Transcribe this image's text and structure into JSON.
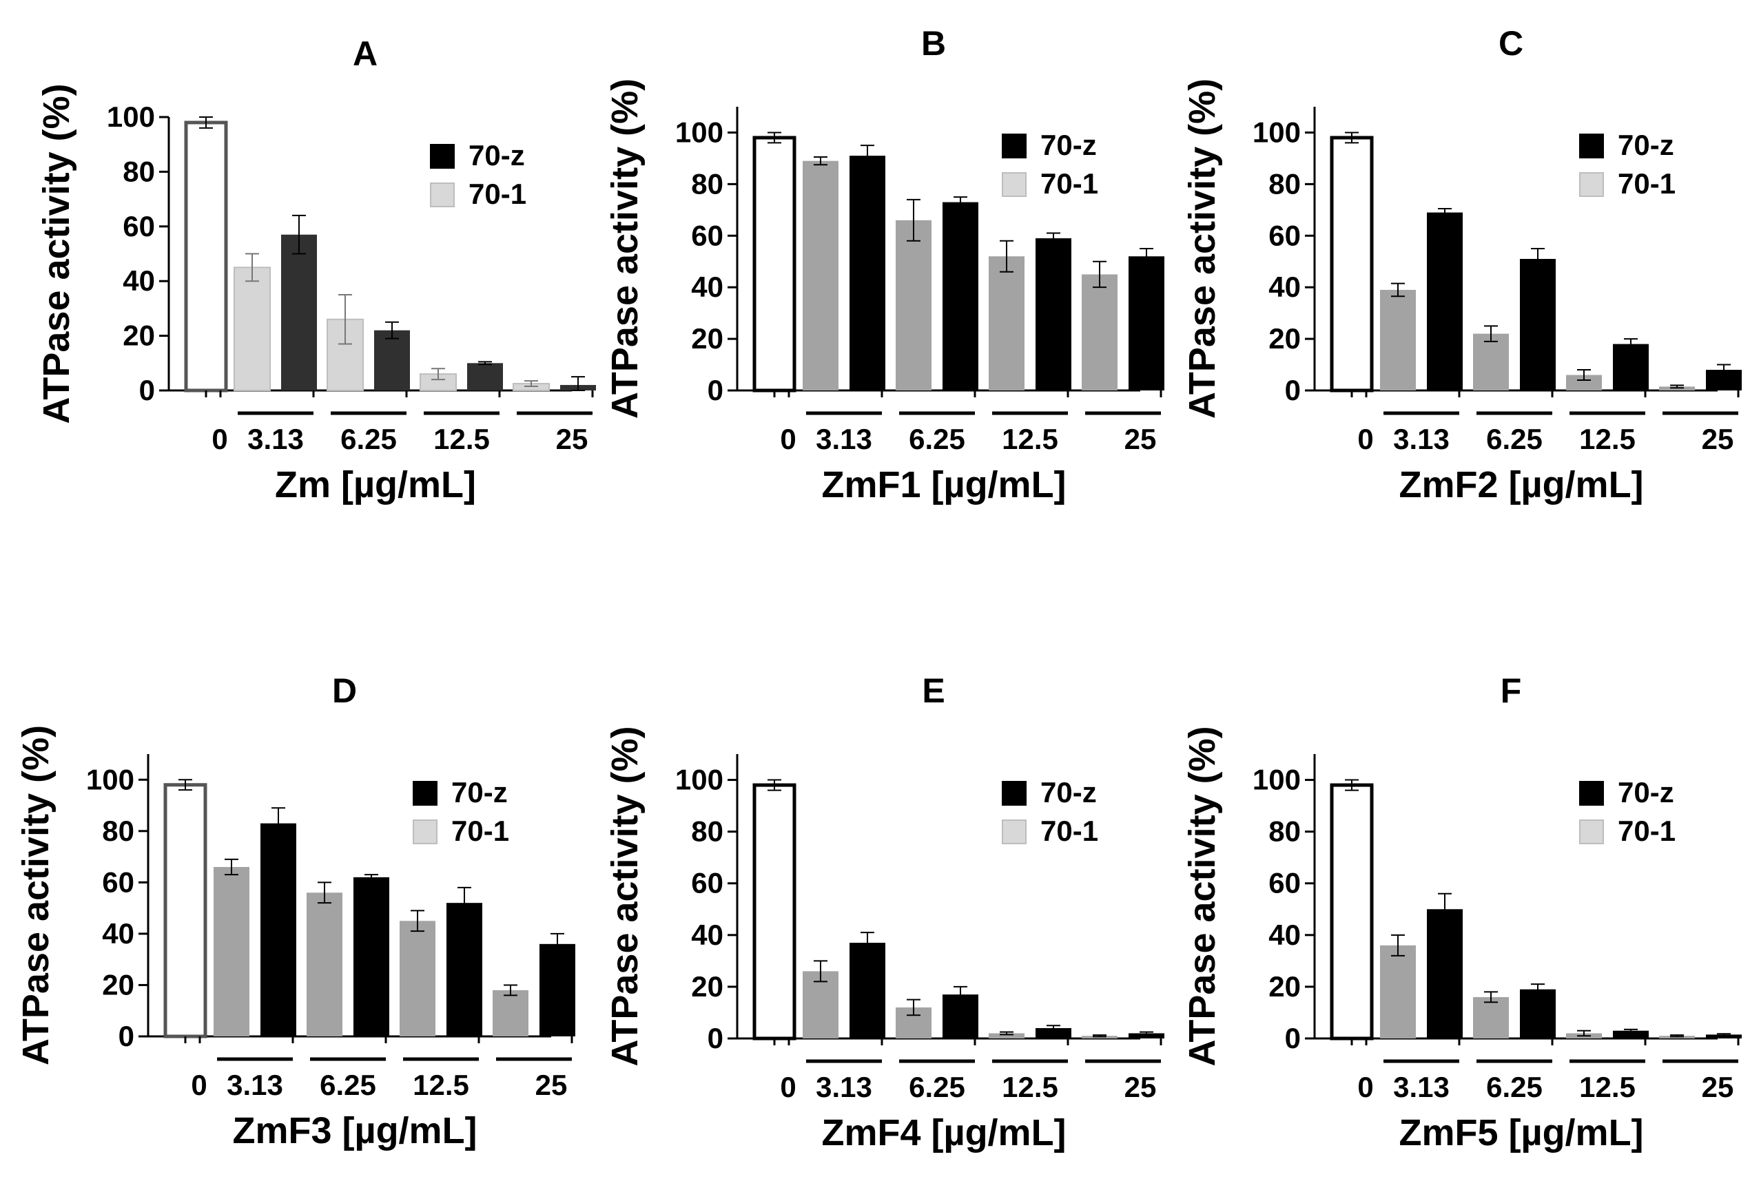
{
  "figure": {
    "type": "grouped bar charts with error bars",
    "rows": 2,
    "cols": 3
  },
  "colors": {
    "control_fill": "#ffffff",
    "control_stroke_dark": "#000000",
    "control_stroke_gray": "#555555",
    "series_70z": "#000000",
    "series_70z_panelA": "#303030",
    "series_701_legend": "#d8d8d8",
    "series_701_bars": "#a3a3a3",
    "series_701_panelA": "#d6d6d6"
  },
  "chart_data": [
    {
      "id": "A",
      "title": "A",
      "type": "bar",
      "xlabel": "Zm [µg/mL]",
      "ylabel": "ATPase activity (%)",
      "ylim": [
        0,
        100
      ],
      "yticks": [
        0,
        20,
        40,
        60,
        80,
        100
      ],
      "legend": [
        "70-z",
        "70-1"
      ],
      "control": {
        "label": "0",
        "value": 98,
        "error": 2
      },
      "groups": [
        "3.13",
        "6.25",
        "12.5",
        "25"
      ],
      "series": [
        {
          "name": "70-1",
          "values": [
            45,
            26,
            6,
            2.5
          ],
          "errors": [
            5,
            9,
            2,
            1
          ]
        },
        {
          "name": "70-z",
          "values": [
            57,
            22,
            10,
            2
          ],
          "errors": [
            7,
            3,
            0.5,
            3
          ]
        }
      ]
    },
    {
      "id": "B",
      "title": "B",
      "type": "bar",
      "xlabel": "ZmF1 [µg/mL]",
      "ylabel": "ATPase activity (%)",
      "ylim": [
        0,
        110
      ],
      "yticks": [
        0,
        20,
        40,
        60,
        80,
        100
      ],
      "legend": [
        "70-z",
        "70-1"
      ],
      "control": {
        "label": "0",
        "value": 98,
        "error": 2
      },
      "groups": [
        "3.13",
        "6.25",
        "12.5",
        "25"
      ],
      "series": [
        {
          "name": "70-1",
          "values": [
            89,
            66,
            52,
            45
          ],
          "errors": [
            1.5,
            8,
            6,
            5
          ]
        },
        {
          "name": "70-z",
          "values": [
            91,
            73,
            59,
            52
          ],
          "errors": [
            4,
            2,
            2,
            3
          ]
        }
      ]
    },
    {
      "id": "C",
      "title": "C",
      "type": "bar",
      "xlabel": "ZmF2 [µg/mL]",
      "ylabel": "ATPase activity (%)",
      "ylim": [
        0,
        110
      ],
      "yticks": [
        0,
        20,
        40,
        60,
        80,
        100
      ],
      "legend": [
        "70-z",
        "70-1"
      ],
      "control": {
        "label": "0",
        "value": 98,
        "error": 2
      },
      "groups": [
        "3.13",
        "6.25",
        "12.5",
        "25"
      ],
      "series": [
        {
          "name": "70-1",
          "values": [
            39,
            22,
            6,
            1.5
          ],
          "errors": [
            2.5,
            3,
            2,
            0.5
          ]
        },
        {
          "name": "70-z",
          "values": [
            69,
            51,
            18,
            8
          ],
          "errors": [
            1.5,
            4,
            2,
            2
          ]
        }
      ]
    },
    {
      "id": "D",
      "title": "D",
      "type": "bar",
      "xlabel": "ZmF3 [µg/mL]",
      "ylabel": "ATPase activity (%)",
      "ylim": [
        0,
        110
      ],
      "yticks": [
        0,
        20,
        40,
        60,
        80,
        100
      ],
      "legend": [
        "70-z",
        "70-1"
      ],
      "control": {
        "label": "0",
        "value": 98,
        "error": 2
      },
      "groups": [
        "3.13",
        "6.25",
        "12.5",
        "25"
      ],
      "series": [
        {
          "name": "70-1",
          "values": [
            66,
            56,
            45,
            18
          ],
          "errors": [
            3,
            4,
            4,
            2
          ]
        },
        {
          "name": "70-z",
          "values": [
            83,
            62,
            52,
            36
          ],
          "errors": [
            6,
            1,
            6,
            4
          ]
        }
      ]
    },
    {
      "id": "E",
      "title": "E",
      "type": "bar",
      "xlabel": "ZmF4 [µg/mL]",
      "ylabel": "ATPase activity (%)",
      "ylim": [
        0,
        110
      ],
      "yticks": [
        0,
        20,
        40,
        60,
        80,
        100
      ],
      "legend": [
        "70-z",
        "70-1"
      ],
      "control": {
        "label": "0",
        "value": 98,
        "error": 2
      },
      "groups": [
        "3.13",
        "6.25",
        "12.5",
        "25"
      ],
      "series": [
        {
          "name": "70-1",
          "values": [
            26,
            12,
            2,
            1
          ],
          "errors": [
            4,
            3,
            0.5,
            0.3
          ]
        },
        {
          "name": "70-z",
          "values": [
            37,
            17,
            4,
            2
          ],
          "errors": [
            4,
            3,
            1,
            0.5
          ]
        }
      ]
    },
    {
      "id": "F",
      "title": "F",
      "type": "bar",
      "xlabel": "ZmF5 [µg/mL]",
      "ylabel": "ATPase activity (%)",
      "ylim": [
        0,
        110
      ],
      "yticks": [
        0,
        20,
        40,
        60,
        80,
        100
      ],
      "legend": [
        "70-z",
        "70-1"
      ],
      "control": {
        "label": "0",
        "value": 98,
        "error": 2
      },
      "groups": [
        "3.13",
        "6.25",
        "12.5",
        "25"
      ],
      "series": [
        {
          "name": "70-1",
          "values": [
            36,
            16,
            2,
            1
          ],
          "errors": [
            4,
            2,
            1,
            0.3
          ]
        },
        {
          "name": "70-z",
          "values": [
            50,
            19,
            3,
            1.5
          ],
          "errors": [
            6,
            2,
            0.5,
            0.3
          ]
        }
      ]
    }
  ]
}
